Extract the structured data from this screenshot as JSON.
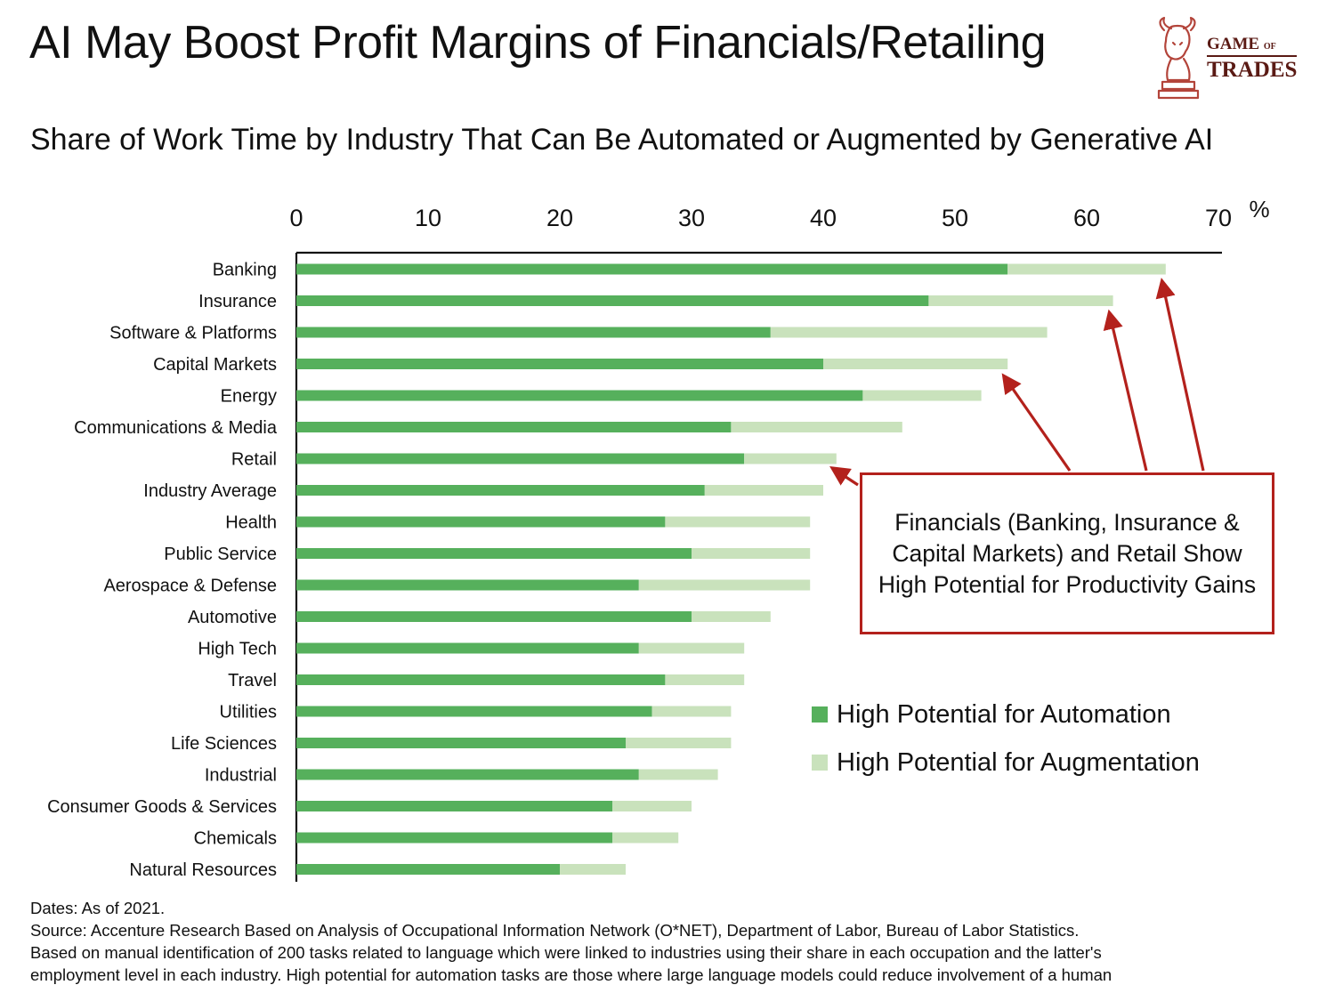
{
  "title": "AI May Boost Profit Margins of Financials/Retailing",
  "subtitle": "Share of Work Time by Industry That Can Be Automated or Augmented by Generative AI",
  "logo": {
    "line1": "GAME",
    "line1_small": "OF",
    "line2": "TRADES",
    "icon": "bull-knight-chess-icon",
    "color": "#5a1a14"
  },
  "callout": {
    "text": "Financials (Banking, Insurance & Capital Markets) and Retail Show High Potential for Productivity Gains",
    "color": "#b3211c"
  },
  "footnote": [
    "Dates: As of 2021.",
    "Source: Accenture Research Based on Analysis of Occupational Information Network (O*NET), Department of Labor, Bureau of Labor Statistics.",
    "Based on manual identification of 200 tasks related to language which were linked to industries using their share in each occupation and the latter's",
    "employment level in each industry. High potential for automation tasks are those where large language models could reduce involvement of a human"
  ],
  "chart_data": {
    "type": "bar",
    "orientation": "horizontal",
    "stacked": true,
    "xlim": [
      0,
      70
    ],
    "xticks": [
      0,
      10,
      20,
      30,
      40,
      50,
      60,
      70
    ],
    "xunit": "%",
    "axis_position": "top",
    "grid": false,
    "legend_position": "right",
    "categories": [
      "Banking",
      "Insurance",
      "Software & Platforms",
      "Capital Markets",
      "Energy",
      "Communications & Media",
      "Retail",
      "Industry Average",
      "Health",
      "Public Service",
      "Aerospace & Defense",
      "Automotive",
      "High Tech",
      "Travel",
      "Utilities",
      "Life Sciences",
      "Industrial",
      "Consumer Goods & Services",
      "Chemicals",
      "Natural Resources"
    ],
    "series": [
      {
        "name": "High Potential for Automation",
        "color": "#56b05c",
        "values": [
          54,
          48,
          36,
          40,
          43,
          33,
          34,
          31,
          28,
          30,
          26,
          30,
          26,
          28,
          27,
          25,
          26,
          24,
          24,
          20
        ]
      },
      {
        "name": "High Potential for Augmentation",
        "color": "#c9e2bc",
        "values": [
          12,
          14,
          21,
          14,
          9,
          13,
          7,
          9,
          11,
          9,
          13,
          6,
          8,
          6,
          6,
          8,
          6,
          6,
          5,
          5
        ]
      }
    ],
    "highlighted": [
      "Banking",
      "Insurance",
      "Capital Markets",
      "Retail"
    ]
  }
}
